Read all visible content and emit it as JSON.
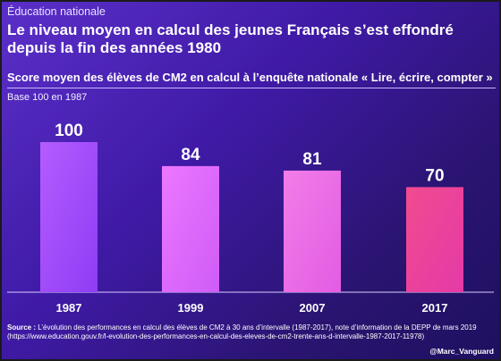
{
  "header": {
    "kicker": "Éducation nationale",
    "title": "Le niveau moyen en calcul des jeunes Français s’est effondré depuis la fin des années 1980",
    "subtitle": "Score moyen des élèves de CM2 en calcul à l’enquête nationale « Lire, écrire, compter »",
    "base_note": "Base 100 en 1987"
  },
  "chart_data": {
    "type": "bar",
    "title": "Score moyen des élèves de CM2 en calcul à l’enquête nationale « Lire, écrire, compter »",
    "subtitle": "Base 100 en 1987",
    "categories": [
      "1987",
      "1999",
      "2007",
      "2017"
    ],
    "values": [
      100,
      84,
      81,
      70
    ],
    "value_labels": [
      "100",
      "84",
      "81",
      "70"
    ],
    "xlabel": "",
    "ylabel": "",
    "ylim": [
      0,
      115
    ],
    "grid": false,
    "legend": "none",
    "colors": {
      "bar_gradients": [
        [
          "#b45cff",
          "#8f3cf5"
        ],
        [
          "#ec77ff",
          "#cf5cf7"
        ],
        [
          "#f17de8",
          "#e35ce3"
        ],
        [
          "#f14b8f",
          "#e43aa8"
        ]
      ],
      "axis": "#d9ccff"
    }
  },
  "footer": {
    "source_label": "Source :",
    "source_text": "L’évolution des performances en calcul des élèves de CM2 à 30 ans d’intervalle (1987-2017), note d’information de la DEPP de mars 2019 (https://www.education.gouv.fr/l-evolution-des-performances-en-calcul-des-eleves-de-cm2-trente-ans-d-intervalle-1987-2017-11978)",
    "handle": "@Marc_Vanguard"
  }
}
